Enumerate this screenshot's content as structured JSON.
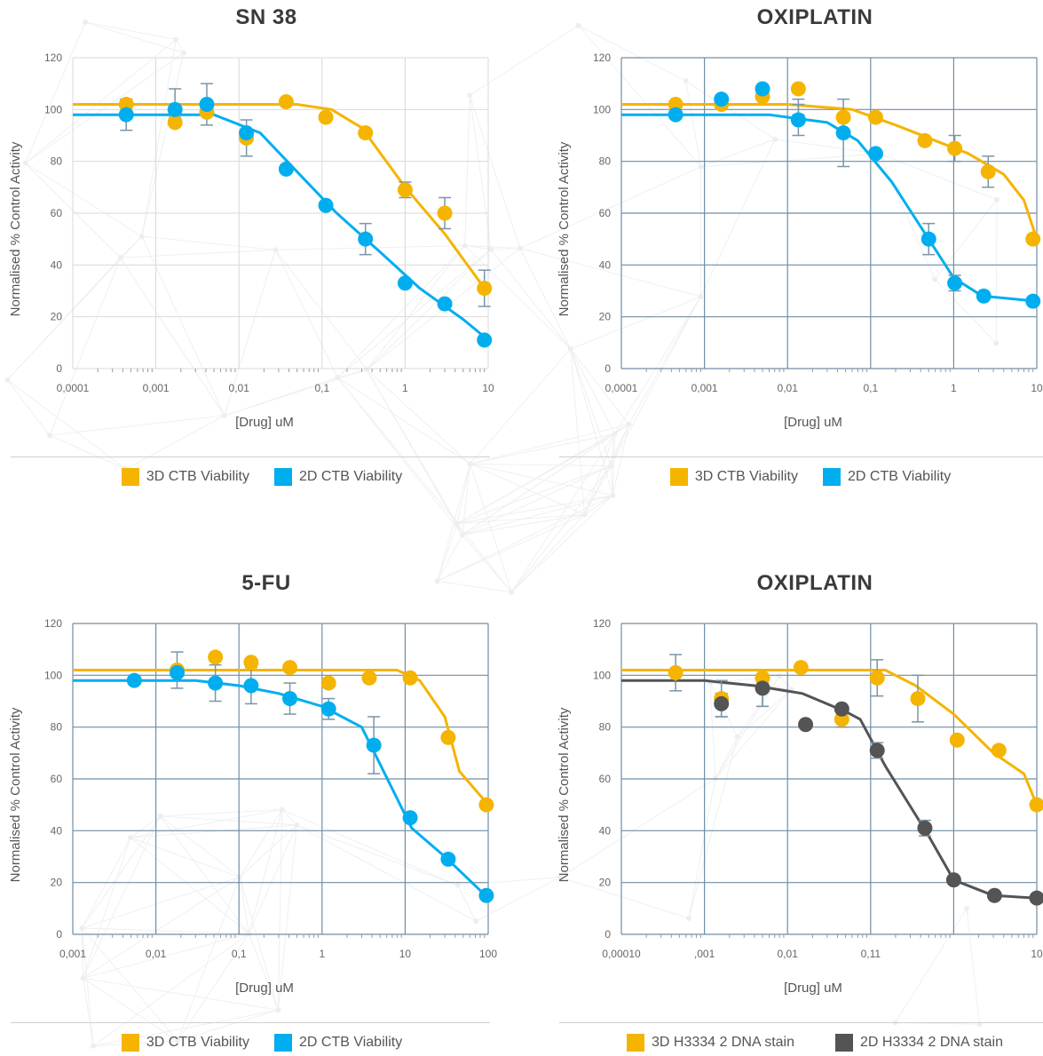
{
  "chart_data": [
    {
      "type": "scatter",
      "title": "SN 38",
      "xlabel": "[Drug] uM",
      "ylabel": "Normalised % Control Activity",
      "x_scale": "log",
      "xlim": [
        0.0001,
        10
      ],
      "ylim": [
        0,
        120
      ],
      "x_ticks": [
        "0,0001",
        "0,001",
        "0,01",
        "0,1",
        "1",
        "10"
      ],
      "y_ticks": [
        "0",
        "20",
        "40",
        "60",
        "80",
        "100",
        "120"
      ],
      "grid": "light",
      "legend": "bottom",
      "series": [
        {
          "name": "3D CTB Viability",
          "color": "#F5B400",
          "points": [
            {
              "x": 0.00044,
              "y": 102
            },
            {
              "x": 0.0017,
              "y": 95
            },
            {
              "x": 0.0041,
              "y": 99
            },
            {
              "x": 0.0123,
              "y": 89
            },
            {
              "x": 0.037,
              "y": 103
            },
            {
              "x": 0.111,
              "y": 97
            },
            {
              "x": 0.333,
              "y": 91
            },
            {
              "x": 1.0,
              "y": 69
            },
            {
              "x": 3.0,
              "y": 60
            },
            {
              "x": 9.0,
              "y": 31
            }
          ],
          "error_bars": [
            {
              "x": 0.0017,
              "low": 94,
              "high": 97
            },
            {
              "x": 1.0,
              "low": 66,
              "high": 72
            },
            {
              "x": 3.0,
              "low": 54,
              "high": 66
            },
            {
              "x": 9.0,
              "low": 24,
              "high": 38
            }
          ],
          "fit": [
            {
              "x": 0.0001,
              "y": 102
            },
            {
              "x": 0.05,
              "y": 102
            },
            {
              "x": 0.13,
              "y": 100
            },
            {
              "x": 0.3,
              "y": 93
            },
            {
              "x": 1.0,
              "y": 70
            },
            {
              "x": 3.0,
              "y": 52
            },
            {
              "x": 10,
              "y": 29
            }
          ]
        },
        {
          "name": "2D CTB Viability",
          "color": "#00AEEF",
          "points": [
            {
              "x": 0.00044,
              "y": 98
            },
            {
              "x": 0.0017,
              "y": 100
            },
            {
              "x": 0.0041,
              "y": 102
            },
            {
              "x": 0.0123,
              "y": 91
            },
            {
              "x": 0.037,
              "y": 77
            },
            {
              "x": 0.111,
              "y": 63
            },
            {
              "x": 0.333,
              "y": 50
            },
            {
              "x": 1.0,
              "y": 33
            },
            {
              "x": 3.0,
              "y": 25
            },
            {
              "x": 9.0,
              "y": 11
            }
          ],
          "error_bars": [
            {
              "x": 0.00044,
              "low": 92,
              "high": 104
            },
            {
              "x": 0.0017,
              "low": 95,
              "high": 108
            },
            {
              "x": 0.0041,
              "low": 94,
              "high": 110
            },
            {
              "x": 0.0123,
              "low": 82,
              "high": 96
            },
            {
              "x": 0.333,
              "low": 44,
              "high": 56
            }
          ],
          "fit": [
            {
              "x": 0.0001,
              "y": 98
            },
            {
              "x": 0.005,
              "y": 98
            },
            {
              "x": 0.018,
              "y": 91
            },
            {
              "x": 0.05,
              "y": 76
            },
            {
              "x": 0.15,
              "y": 60
            },
            {
              "x": 0.5,
              "y": 45
            },
            {
              "x": 1.5,
              "y": 31
            },
            {
              "x": 5.0,
              "y": 19
            },
            {
              "x": 10,
              "y": 11
            }
          ]
        }
      ]
    },
    {
      "type": "scatter",
      "title": "OXIPLATIN",
      "xlabel": "[Drug] uM",
      "ylabel": "Normalised % Control Activity",
      "x_scale": "log",
      "xlim": [
        0.0001,
        10
      ],
      "ylim": [
        0,
        120
      ],
      "x_ticks": [
        "0,0001",
        "0,001",
        "0,01",
        "0,1",
        "1",
        "10"
      ],
      "y_ticks": [
        "0",
        "20",
        "40",
        "60",
        "80",
        "100",
        "120"
      ],
      "grid": "dark",
      "legend": "bottom",
      "series": [
        {
          "name": "3D CTB Viability",
          "color": "#F5B400",
          "points": [
            {
              "x": 0.00045,
              "y": 102
            },
            {
              "x": 0.0016,
              "y": 102
            },
            {
              "x": 0.005,
              "y": 105
            },
            {
              "x": 0.0135,
              "y": 108
            },
            {
              "x": 0.047,
              "y": 97
            },
            {
              "x": 0.115,
              "y": 97
            },
            {
              "x": 0.45,
              "y": 88
            },
            {
              "x": 1.03,
              "y": 85
            },
            {
              "x": 2.6,
              "y": 76
            },
            {
              "x": 9.0,
              "y": 50
            }
          ],
          "error_bars": [
            {
              "x": 0.0135,
              "low": 98,
              "high": 104
            },
            {
              "x": 1.03,
              "low": 80,
              "high": 90
            },
            {
              "x": 2.6,
              "low": 70,
              "high": 82
            }
          ],
          "fit": [
            {
              "x": 0.0001,
              "y": 102
            },
            {
              "x": 0.01,
              "y": 102
            },
            {
              "x": 0.06,
              "y": 100
            },
            {
              "x": 0.2,
              "y": 94
            },
            {
              "x": 0.6,
              "y": 88
            },
            {
              "x": 1.5,
              "y": 83
            },
            {
              "x": 4.0,
              "y": 75
            },
            {
              "x": 7.0,
              "y": 65
            },
            {
              "x": 10,
              "y": 50
            }
          ]
        },
        {
          "name": "2D CTB Viability",
          "color": "#00AEEF",
          "points": [
            {
              "x": 0.00045,
              "y": 98
            },
            {
              "x": 0.0016,
              "y": 104
            },
            {
              "x": 0.005,
              "y": 108
            },
            {
              "x": 0.0135,
              "y": 96
            },
            {
              "x": 0.047,
              "y": 91
            },
            {
              "x": 0.115,
              "y": 83
            },
            {
              "x": 0.5,
              "y": 50
            },
            {
              "x": 1.03,
              "y": 33
            },
            {
              "x": 2.3,
              "y": 28
            },
            {
              "x": 9.0,
              "y": 26
            }
          ],
          "error_bars": [
            {
              "x": 0.0135,
              "low": 90,
              "high": 102
            },
            {
              "x": 0.047,
              "low": 78,
              "high": 104
            },
            {
              "x": 0.5,
              "low": 44,
              "high": 56
            },
            {
              "x": 1.03,
              "low": 30,
              "high": 36
            }
          ],
          "fit": [
            {
              "x": 0.0001,
              "y": 98
            },
            {
              "x": 0.006,
              "y": 98
            },
            {
              "x": 0.03,
              "y": 95
            },
            {
              "x": 0.07,
              "y": 88
            },
            {
              "x": 0.18,
              "y": 72
            },
            {
              "x": 0.5,
              "y": 50
            },
            {
              "x": 1.0,
              "y": 35
            },
            {
              "x": 2.2,
              "y": 28
            },
            {
              "x": 10,
              "y": 26
            }
          ]
        }
      ]
    },
    {
      "type": "scatter",
      "title": "5-FU",
      "xlabel": "[Drug] uM",
      "ylabel": "Normalised % Control Activity",
      "x_scale": "log",
      "xlim": [
        0.001,
        100
      ],
      "ylim": [
        0,
        120
      ],
      "x_ticks": [
        "0,001",
        "0,01",
        "0,1",
        "1",
        "10",
        "100"
      ],
      "y_ticks": [
        "0",
        "20",
        "40",
        "60",
        "80",
        "100",
        "120"
      ],
      "grid": "dark",
      "legend": "bottom",
      "series": [
        {
          "name": "3D CTB Viability",
          "color": "#F5B400",
          "points": [
            {
              "x": 0.018,
              "y": 102
            },
            {
              "x": 0.052,
              "y": 107
            },
            {
              "x": 0.14,
              "y": 105
            },
            {
              "x": 0.41,
              "y": 103
            },
            {
              "x": 1.2,
              "y": 97
            },
            {
              "x": 3.7,
              "y": 99
            },
            {
              "x": 11.5,
              "y": 99
            },
            {
              "x": 33,
              "y": 76
            },
            {
              "x": 95,
              "y": 50
            }
          ],
          "error_bars": [
            {
              "x": 0.018,
              "low": 95,
              "high": 109
            }
          ],
          "fit": [
            {
              "x": 0.001,
              "y": 102
            },
            {
              "x": 8,
              "y": 102
            },
            {
              "x": 15,
              "y": 98
            },
            {
              "x": 30,
              "y": 84
            },
            {
              "x": 45,
              "y": 63
            },
            {
              "x": 100,
              "y": 50
            }
          ]
        },
        {
          "name": "2D CTB Viability",
          "color": "#00AEEF",
          "points": [
            {
              "x": 0.0055,
              "y": 98
            },
            {
              "x": 0.018,
              "y": 101
            },
            {
              "x": 0.052,
              "y": 97
            },
            {
              "x": 0.14,
              "y": 96
            },
            {
              "x": 0.41,
              "y": 91
            },
            {
              "x": 1.2,
              "y": 87
            },
            {
              "x": 4.2,
              "y": 73
            },
            {
              "x": 11.5,
              "y": 45
            },
            {
              "x": 33,
              "y": 29
            },
            {
              "x": 95,
              "y": 15
            }
          ],
          "error_bars": [
            {
              "x": 0.052,
              "low": 90,
              "high": 104
            },
            {
              "x": 0.14,
              "low": 89,
              "high": 103
            },
            {
              "x": 0.41,
              "low": 85,
              "high": 97
            },
            {
              "x": 1.2,
              "low": 83,
              "high": 91
            },
            {
              "x": 4.2,
              "low": 62,
              "high": 84
            }
          ],
          "fit": [
            {
              "x": 0.001,
              "y": 98
            },
            {
              "x": 0.03,
              "y": 98
            },
            {
              "x": 0.1,
              "y": 96
            },
            {
              "x": 0.3,
              "y": 93
            },
            {
              "x": 1.0,
              "y": 88
            },
            {
              "x": 3.0,
              "y": 80
            },
            {
              "x": 12,
              "y": 41
            },
            {
              "x": 30,
              "y": 30
            },
            {
              "x": 100,
              "y": 14
            }
          ]
        }
      ]
    },
    {
      "type": "scatter",
      "title": "OXIPLATIN",
      "xlabel": "[Drug] uM",
      "ylabel": "Normalised  % Control Activity",
      "x_scale": "log",
      "xlim": [
        0.0001,
        10
      ],
      "ylim": [
        0,
        120
      ],
      "x_ticks": [
        "0,00010",
        ",001",
        "0,01",
        "0,11",
        "",
        "10"
      ],
      "y_ticks": [
        "0",
        "20",
        "40",
        "60",
        "80",
        "100",
        "120"
      ],
      "grid": "dark",
      "legend": "bottom",
      "series": [
        {
          "name": "3D H3334 2 DNA stain",
          "color": "#F5B400",
          "points": [
            {
              "x": 0.00045,
              "y": 101
            },
            {
              "x": 0.0016,
              "y": 91
            },
            {
              "x": 0.005,
              "y": 99
            },
            {
              "x": 0.0145,
              "y": 103
            },
            {
              "x": 0.045,
              "y": 83
            },
            {
              "x": 0.12,
              "y": 99
            },
            {
              "x": 0.37,
              "y": 91
            },
            {
              "x": 1.1,
              "y": 75
            },
            {
              "x": 3.5,
              "y": 71
            },
            {
              "x": 10,
              "y": 50
            }
          ],
          "error_bars": [
            {
              "x": 0.00045,
              "low": 94,
              "high": 108
            },
            {
              "x": 0.0016,
              "low": 84,
              "high": 98
            },
            {
              "x": 0.005,
              "low": 88,
              "high": 100
            },
            {
              "x": 0.045,
              "low": 80,
              "high": 86
            },
            {
              "x": 0.12,
              "low": 92,
              "high": 106
            },
            {
              "x": 0.37,
              "low": 82,
              "high": 100
            }
          ],
          "fit": [
            {
              "x": 0.0001,
              "y": 102
            },
            {
              "x": 0.15,
              "y": 102
            },
            {
              "x": 0.35,
              "y": 96
            },
            {
              "x": 1.0,
              "y": 85
            },
            {
              "x": 3.0,
              "y": 70
            },
            {
              "x": 7.0,
              "y": 62
            },
            {
              "x": 10,
              "y": 50
            }
          ]
        },
        {
          "name": "2D H3334 2 DNA stain",
          "color": "#545454",
          "points": [
            {
              "x": 0.0016,
              "y": 89
            },
            {
              "x": 0.005,
              "y": 95
            },
            {
              "x": 0.0165,
              "y": 81
            },
            {
              "x": 0.045,
              "y": 87
            },
            {
              "x": 0.12,
              "y": 71
            },
            {
              "x": 0.45,
              "y": 41
            },
            {
              "x": 1.0,
              "y": 21
            },
            {
              "x": 3.1,
              "y": 15
            },
            {
              "x": 10,
              "y": 14
            }
          ],
          "error_bars": [
            {
              "x": 0.0016,
              "low": 84,
              "high": 93
            },
            {
              "x": 0.005,
              "low": 88,
              "high": 97
            },
            {
              "x": 0.12,
              "low": 68,
              "high": 74
            },
            {
              "x": 0.45,
              "low": 38,
              "high": 44
            }
          ],
          "fit": [
            {
              "x": 0.0001,
              "y": 98
            },
            {
              "x": 0.001,
              "y": 98
            },
            {
              "x": 0.004,
              "y": 96
            },
            {
              "x": 0.015,
              "y": 93
            },
            {
              "x": 0.05,
              "y": 86
            },
            {
              "x": 0.075,
              "y": 83
            },
            {
              "x": 0.15,
              "y": 65
            },
            {
              "x": 0.5,
              "y": 38
            },
            {
              "x": 1.0,
              "y": 21
            },
            {
              "x": 3.0,
              "y": 15
            },
            {
              "x": 10,
              "y": 14
            }
          ]
        }
      ]
    }
  ]
}
